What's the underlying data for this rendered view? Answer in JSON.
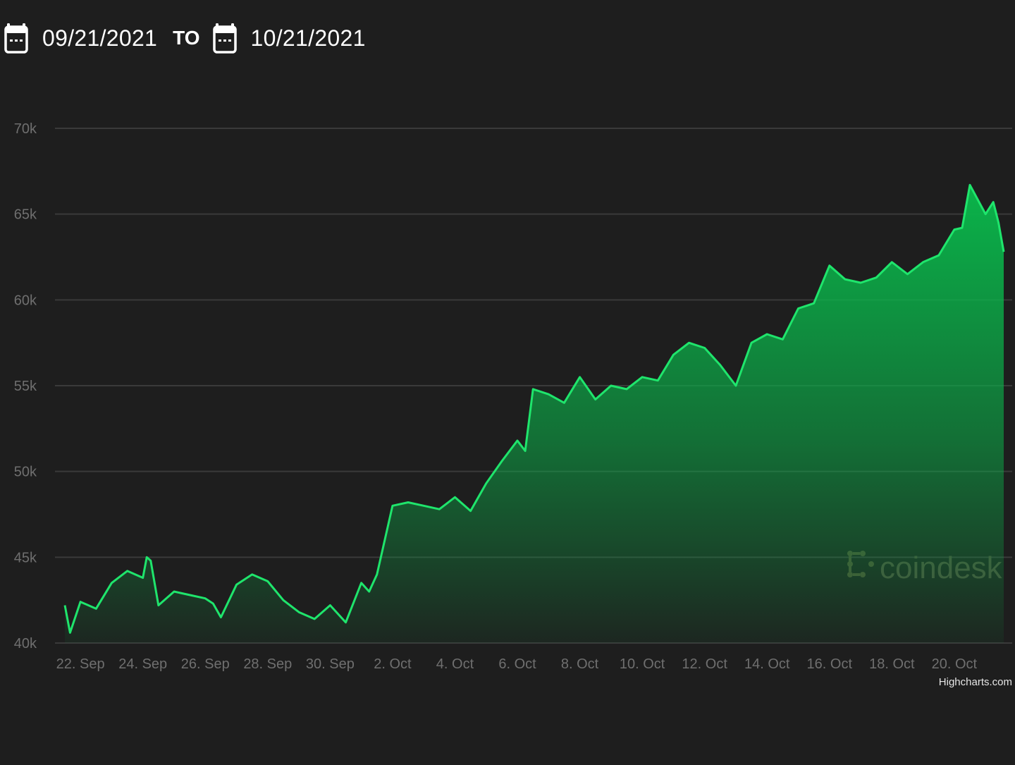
{
  "header": {
    "start_date": "09/21/2021",
    "separator": "TO",
    "end_date": "10/21/2021",
    "icon": "calendar-icon"
  },
  "credit": "Highcharts.com",
  "watermark": "coindesk",
  "colors": {
    "background": "#1e1e1e",
    "line": "#1fe56c",
    "area_top": "#0ab44a",
    "grid": "#3a3a3a",
    "axis_text": "#6f6f6f",
    "watermark": "#4a4a3a"
  },
  "chart_data": {
    "type": "area",
    "title": "",
    "xlabel": "",
    "ylabel": "",
    "xlim": [
      "2021-09-21T12:00",
      "2021-10-21T14:00"
    ],
    "ylim": [
      40000,
      70000
    ],
    "yticks": [
      40000,
      45000,
      50000,
      55000,
      60000,
      65000,
      70000
    ],
    "ytick_labels": [
      "40k",
      "45k",
      "50k",
      "55k",
      "60k",
      "65k",
      "70k"
    ],
    "xticks": [
      "2021-09-22",
      "2021-09-24",
      "2021-09-26",
      "2021-09-28",
      "2021-09-30",
      "2021-10-02",
      "2021-10-04",
      "2021-10-06",
      "2021-10-08",
      "2021-10-10",
      "2021-10-12",
      "2021-10-14",
      "2021-10-16",
      "2021-10-18",
      "2021-10-20"
    ],
    "xtick_labels": [
      "22. Sep",
      "24. Sep",
      "26. Sep",
      "28. Sep",
      "30. Sep",
      "2. Oct",
      "4. Oct",
      "6. Oct",
      "8. Oct",
      "10. Oct",
      "12. Oct",
      "14. Oct",
      "16. Oct",
      "18. Oct",
      "20. Oct"
    ],
    "grid": true,
    "legend": false,
    "series": [
      {
        "x": [
          "2021-09-21T12:00",
          "2021-09-21T16:00",
          "2021-09-22T00:00",
          "2021-09-22T12:00",
          "2021-09-23T00:00",
          "2021-09-23T12:00",
          "2021-09-24T00:00",
          "2021-09-24T03:00",
          "2021-09-24T06:00",
          "2021-09-24T12:00",
          "2021-09-25T00:00",
          "2021-09-25T12:00",
          "2021-09-26T00:00",
          "2021-09-26T06:00",
          "2021-09-26T12:00",
          "2021-09-27T00:00",
          "2021-09-27T12:00",
          "2021-09-28T00:00",
          "2021-09-28T12:00",
          "2021-09-29T00:00",
          "2021-09-29T12:00",
          "2021-09-30T00:00",
          "2021-09-30T12:00",
          "2021-10-01T00:00",
          "2021-10-01T06:00",
          "2021-10-01T12:00",
          "2021-10-02T00:00",
          "2021-10-02T12:00",
          "2021-10-03T00:00",
          "2021-10-03T12:00",
          "2021-10-04T00:00",
          "2021-10-04T12:00",
          "2021-10-05T00:00",
          "2021-10-05T12:00",
          "2021-10-06T00:00",
          "2021-10-06T06:00",
          "2021-10-06T12:00",
          "2021-10-07T00:00",
          "2021-10-07T12:00",
          "2021-10-08T00:00",
          "2021-10-08T12:00",
          "2021-10-09T00:00",
          "2021-10-09T12:00",
          "2021-10-10T00:00",
          "2021-10-10T12:00",
          "2021-10-11T00:00",
          "2021-10-11T12:00",
          "2021-10-12T00:00",
          "2021-10-12T12:00",
          "2021-10-13T00:00",
          "2021-10-13T12:00",
          "2021-10-14T00:00",
          "2021-10-14T12:00",
          "2021-10-15T00:00",
          "2021-10-15T12:00",
          "2021-10-16T00:00",
          "2021-10-16T12:00",
          "2021-10-17T00:00",
          "2021-10-17T12:00",
          "2021-10-18T00:00",
          "2021-10-18T12:00",
          "2021-10-19T00:00",
          "2021-10-19T12:00",
          "2021-10-20T00:00",
          "2021-10-20T06:00",
          "2021-10-20T12:00",
          "2021-10-21T00:00",
          "2021-10-21T06:00",
          "2021-10-21T10:00",
          "2021-10-21T14:00"
        ],
        "y": [
          42200,
          40600,
          42400,
          42000,
          43500,
          44200,
          43800,
          45000,
          44800,
          42200,
          43000,
          42800,
          42600,
          42300,
          41500,
          43400,
          44000,
          43600,
          42500,
          41800,
          41400,
          42200,
          41200,
          43500,
          43000,
          44000,
          48000,
          48200,
          48000,
          47800,
          48500,
          47700,
          49300,
          50600,
          51800,
          51200,
          54800,
          54500,
          54000,
          55500,
          54200,
          55000,
          54800,
          55500,
          55300,
          56800,
          57500,
          57200,
          56200,
          55000,
          57500,
          58000,
          57700,
          59500,
          59800,
          62000,
          61200,
          61000,
          61300,
          62200,
          61500,
          62200,
          62600,
          64100,
          64200,
          66700,
          65000,
          65700,
          64500,
          62800
        ]
      }
    ]
  }
}
